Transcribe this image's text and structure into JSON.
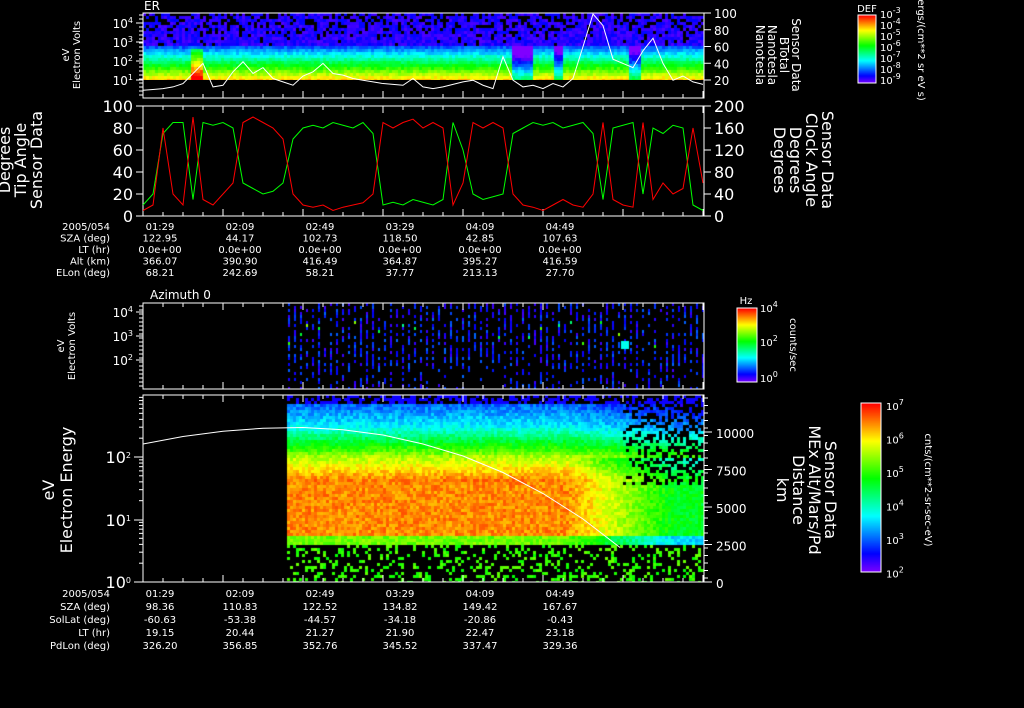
{
  "colors": {
    "background": "#000000",
    "axis": "#ffffff",
    "tip": "#ff0000",
    "clock": "#00ff00",
    "btotal": "#ffffff"
  },
  "chart_data": [
    {
      "type": "heatmap",
      "title": "ER",
      "ylabel": [
        "Electron Volts",
        "eV"
      ],
      "yticks": [
        {
          "base": "10",
          "exp": "4"
        },
        {
          "base": "10",
          "exp": "3"
        },
        {
          "base": "10",
          "exp": "2"
        },
        {
          "base": "10",
          "exp": "1"
        }
      ],
      "yscale": "log",
      "ylim": [
        1,
        20000
      ],
      "right_axis": {
        "ticks": [
          "100",
          "80",
          "60",
          "40",
          "20"
        ],
        "ylim": [
          0,
          100
        ],
        "label": [
          "Sensor Data",
          "BTotal",
          "Nanotesla",
          "Nanotesla"
        ]
      },
      "colorbar": {
        "title": "DEF",
        "ticks": [
          {
            "base": "10",
            "exp": "-3"
          },
          {
            "base": "10",
            "exp": "-4"
          },
          {
            "base": "10",
            "exp": "-5"
          },
          {
            "base": "10",
            "exp": "-6"
          },
          {
            "base": "10",
            "exp": "-7"
          },
          {
            "base": "10",
            "exp": "-8"
          },
          {
            "base": "10",
            "exp": "-9"
          }
        ],
        "units": "ergs/(cm**2 sr eV s)"
      },
      "series": [
        {
          "name": "BTotal (nT)",
          "values": [
            8,
            9,
            10,
            12,
            16,
            28,
            40,
            12,
            14,
            30,
            42,
            28,
            35,
            22,
            18,
            14,
            25,
            30,
            40,
            28,
            26,
            22,
            20,
            18,
            16,
            15,
            14,
            22,
            12,
            10,
            12,
            15,
            18,
            20,
            14,
            10,
            48,
            20,
            12,
            14,
            10,
            16,
            12,
            22,
            60,
            100,
            85,
            45,
            40,
            35,
            55,
            70,
            40,
            20,
            25,
            18,
            15
          ]
        }
      ]
    },
    {
      "type": "line",
      "ylim_left": [
        0,
        100
      ],
      "ylim_right": [
        0,
        200
      ],
      "yticks_left": [
        "100",
        "80",
        "60",
        "40",
        "20",
        "0"
      ],
      "yticks_right": [
        "200",
        "160",
        "120",
        "80",
        "40",
        "0"
      ],
      "ylabel_left": [
        "Sensor Data",
        "Tip Angle",
        "Degrees",
        "Degrees"
      ],
      "ylabel_right": [
        "Sensor Data",
        "Clock Angle",
        "Degrees",
        "Degrees"
      ],
      "series": [
        {
          "name": "Tip Angle (deg)",
          "axis": "left",
          "values": [
            5,
            10,
            80,
            20,
            10,
            90,
            15,
            10,
            20,
            30,
            85,
            90,
            85,
            80,
            70,
            20,
            10,
            8,
            10,
            5,
            8,
            10,
            12,
            20,
            85,
            80,
            85,
            88,
            80,
            85,
            80,
            10,
            30,
            85,
            80,
            85,
            80,
            20,
            10,
            8,
            5,
            10,
            15,
            10,
            8,
            20,
            85,
            15,
            10,
            8,
            85,
            15,
            30,
            20,
            25,
            80,
            30
          ]
        },
        {
          "name": "Clock Angle (deg)",
          "axis": "right",
          "values": [
            20,
            40,
            150,
            170,
            170,
            30,
            170,
            165,
            170,
            160,
            60,
            50,
            40,
            45,
            60,
            140,
            160,
            165,
            160,
            170,
            165,
            160,
            170,
            150,
            20,
            25,
            20,
            30,
            25,
            20,
            30,
            170,
            120,
            40,
            30,
            35,
            40,
            150,
            160,
            170,
            165,
            170,
            160,
            165,
            170,
            150,
            30,
            160,
            165,
            170,
            40,
            160,
            150,
            165,
            160,
            20,
            10
          ]
        }
      ]
    },
    {
      "type": "table",
      "rows": [
        {
          "label": "2005/054",
          "values": [
            "01:29",
            "02:09",
            "02:49",
            "03:29",
            "04:09",
            "04:49"
          ]
        },
        {
          "label": "SZA (deg)",
          "values": [
            "122.95",
            "44.17",
            "102.73",
            "118.50",
            "42.85",
            "107.63"
          ]
        },
        {
          "label": "LT (hr)",
          "values": [
            "0.0e+00",
            "0.0e+00",
            "0.0e+00",
            "0.0e+00",
            "0.0e+00",
            "0.0e+00"
          ]
        },
        {
          "label": "Alt (km)",
          "values": [
            "366.07",
            "390.90",
            "416.49",
            "364.87",
            "395.27",
            "416.59"
          ]
        },
        {
          "label": "ELon (deg)",
          "values": [
            "68.21",
            "242.69",
            "58.21",
            "37.77",
            "213.13",
            "27.70"
          ]
        }
      ]
    },
    {
      "type": "heatmap",
      "title": "Azimuth 0",
      "ylabel": [
        "Electron Volts",
        "eV"
      ],
      "yticks": [
        {
          "base": "10",
          "exp": "4"
        },
        {
          "base": "10",
          "exp": "3"
        },
        {
          "base": "10",
          "exp": "2"
        }
      ],
      "yscale": "log",
      "colorbar": {
        "title": "Hz",
        "ticks": [
          {
            "base": "10",
            "exp": "4"
          },
          {
            "base": "10",
            "exp": "2"
          },
          {
            "base": "10",
            "exp": "0"
          }
        ],
        "units": "counts/sec"
      }
    },
    {
      "type": "heatmap",
      "ylabel": [
        "Electron Energy",
        "eV"
      ],
      "yticks": [
        {
          "base": "10",
          "exp": "2"
        },
        {
          "base": "10",
          "exp": "1"
        },
        {
          "base": "10",
          "exp": "0"
        }
      ],
      "yscale": "log",
      "ylim": [
        1,
        1000
      ],
      "right_axis": {
        "ticks": [
          "10000",
          "7500",
          "5000",
          "2500",
          "0"
        ],
        "ylim": [
          0,
          12500
        ],
        "label": [
          "Sensor Data",
          "MEx Alt/Mars/Pd",
          "Distance",
          "km"
        ]
      },
      "colorbar": {
        "ticks": [
          {
            "base": "10",
            "exp": "7"
          },
          {
            "base": "10",
            "exp": "6"
          },
          {
            "base": "10",
            "exp": "5"
          },
          {
            "base": "10",
            "exp": "4"
          },
          {
            "base": "10",
            "exp": "3"
          },
          {
            "base": "10",
            "exp": "2"
          }
        ],
        "units": "cnts/(cm**2-sr-sec-eV)"
      },
      "series": [
        {
          "name": "MEx Alt (km)",
          "times": [
            "01:29",
            "01:49",
            "02:09",
            "02:29",
            "02:49",
            "03:09",
            "03:29",
            "03:49",
            "04:09",
            "04:29",
            "04:49",
            "05:09",
            "05:29"
          ],
          "values": [
            9200,
            9700,
            10050,
            10250,
            10300,
            10150,
            9800,
            9200,
            8400,
            7300,
            5900,
            4200,
            2300
          ]
        }
      ]
    },
    {
      "type": "table",
      "rows": [
        {
          "label": "2005/054",
          "values": [
            "01:29",
            "02:09",
            "02:49",
            "03:29",
            "04:09",
            "04:49"
          ]
        },
        {
          "label": "SZA (deg)",
          "values": [
            "98.36",
            "110.83",
            "122.52",
            "134.82",
            "149.42",
            "167.67"
          ]
        },
        {
          "label": "SolLat (deg)",
          "values": [
            "-60.63",
            "-53.38",
            "-44.57",
            "-34.18",
            "-20.86",
            "-0.43"
          ]
        },
        {
          "label": "LT (hr)",
          "values": [
            "19.15",
            "20.44",
            "21.27",
            "21.90",
            "22.47",
            "23.18"
          ]
        },
        {
          "label": "PdLon (deg)",
          "values": [
            "326.20",
            "356.85",
            "352.76",
            "345.52",
            "337.47",
            "329.36"
          ]
        }
      ]
    }
  ]
}
